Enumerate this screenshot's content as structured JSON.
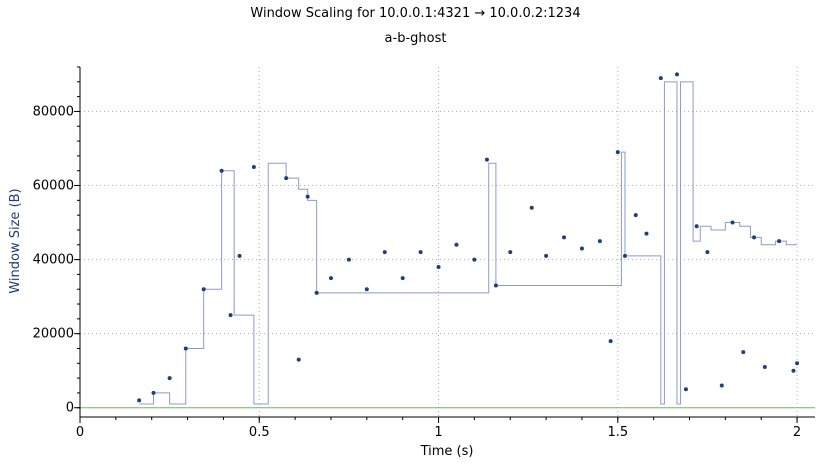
{
  "title": "Window Scaling for 10.0.0.1:4321 → 10.0.0.2:1234",
  "subtitle": "a-b-ghost",
  "colors": {
    "series": "#1f3f7a",
    "step_line": "#8a9ccc",
    "baseline": "#7cb36b",
    "grid": "#b0b0b0",
    "ylabel": "#1f3f7a"
  },
  "chart_data": {
    "type": "scatter",
    "title": "Window Scaling for 10.0.0.1:4321 → 10.0.0.2:1234",
    "subtitle": "a-b-ghost",
    "xlabel": "Time (s)",
    "ylabel": "Window Size (B)",
    "xlim": [
      0,
      2.05
    ],
    "ylim": [
      -2500,
      92000
    ],
    "x_ticks": [
      0,
      0.5,
      1,
      1.5,
      2
    ],
    "x_tick_labels": [
      "0",
      "0.5",
      "1",
      "1.5",
      "2"
    ],
    "y_ticks": [
      0,
      20000,
      40000,
      60000,
      80000
    ],
    "y_tick_labels": [
      "0",
      "20000",
      "40000",
      "60000",
      "80000"
    ],
    "grid": true,
    "series": [
      {
        "style": "points",
        "points": [
          [
            0.165,
            2000
          ],
          [
            0.205,
            4000
          ],
          [
            0.25,
            8000
          ],
          [
            0.295,
            16000
          ],
          [
            0.345,
            32000
          ],
          [
            0.395,
            64000
          ],
          [
            0.42,
            25000
          ],
          [
            0.445,
            41000
          ],
          [
            0.485,
            65000
          ],
          [
            0.575,
            62000
          ],
          [
            0.61,
            13000
          ],
          [
            0.635,
            57000
          ],
          [
            0.66,
            31000
          ],
          [
            0.7,
            35000
          ],
          [
            0.75,
            40000
          ],
          [
            0.8,
            32000
          ],
          [
            0.85,
            42000
          ],
          [
            0.9,
            35000
          ],
          [
            0.95,
            42000
          ],
          [
            1.0,
            38000
          ],
          [
            1.05,
            44000
          ],
          [
            1.1,
            40000
          ],
          [
            1.135,
            67000
          ],
          [
            1.16,
            33000
          ],
          [
            1.2,
            42000
          ],
          [
            1.26,
            54000
          ],
          [
            1.3,
            41000
          ],
          [
            1.35,
            46000
          ],
          [
            1.4,
            43000
          ],
          [
            1.45,
            45000
          ],
          [
            1.48,
            18000
          ],
          [
            1.5,
            69000
          ],
          [
            1.52,
            41000
          ],
          [
            1.55,
            52000
          ],
          [
            1.58,
            47000
          ],
          [
            1.62,
            89000
          ],
          [
            1.665,
            90000
          ],
          [
            1.69,
            5000
          ],
          [
            1.72,
            49000
          ],
          [
            1.75,
            42000
          ],
          [
            1.79,
            6000
          ],
          [
            1.82,
            50000
          ],
          [
            1.85,
            15000
          ],
          [
            1.88,
            46000
          ],
          [
            1.91,
            11000
          ],
          [
            1.95,
            45000
          ],
          [
            1.99,
            10000
          ],
          [
            2.0,
            12000
          ]
        ]
      },
      {
        "style": "step",
        "points": [
          [
            0.165,
            1000
          ],
          [
            0.205,
            1000
          ],
          [
            0.205,
            4000
          ],
          [
            0.25,
            4000
          ],
          [
            0.25,
            1000
          ],
          [
            0.295,
            1000
          ],
          [
            0.295,
            16000
          ],
          [
            0.345,
            16000
          ],
          [
            0.345,
            32000
          ],
          [
            0.395,
            32000
          ],
          [
            0.395,
            64000
          ],
          [
            0.43,
            64000
          ],
          [
            0.43,
            25000
          ],
          [
            0.485,
            25000
          ],
          [
            0.485,
            1000
          ],
          [
            0.525,
            1000
          ],
          [
            0.525,
            66000
          ],
          [
            0.575,
            66000
          ],
          [
            0.575,
            62000
          ],
          [
            0.61,
            62000
          ],
          [
            0.61,
            59000
          ],
          [
            0.635,
            59000
          ],
          [
            0.635,
            56000
          ],
          [
            0.66,
            56000
          ],
          [
            0.66,
            31000
          ],
          [
            1.14,
            31000
          ],
          [
            1.14,
            66000
          ],
          [
            1.16,
            66000
          ],
          [
            1.16,
            33000
          ],
          [
            1.51,
            33000
          ],
          [
            1.51,
            69000
          ],
          [
            1.52,
            69000
          ],
          [
            1.52,
            41000
          ],
          [
            1.62,
            41000
          ],
          [
            1.62,
            1000
          ],
          [
            1.63,
            1000
          ],
          [
            1.63,
            88000
          ],
          [
            1.665,
            88000
          ],
          [
            1.665,
            1000
          ],
          [
            1.675,
            1000
          ],
          [
            1.675,
            88000
          ],
          [
            1.71,
            88000
          ],
          [
            1.71,
            45000
          ],
          [
            1.73,
            45000
          ],
          [
            1.73,
            49000
          ],
          [
            1.76,
            49000
          ],
          [
            1.76,
            48000
          ],
          [
            1.8,
            48000
          ],
          [
            1.8,
            50000
          ],
          [
            1.84,
            50000
          ],
          [
            1.84,
            49000
          ],
          [
            1.87,
            49000
          ],
          [
            1.87,
            46000
          ],
          [
            1.9,
            46000
          ],
          [
            1.9,
            44000
          ],
          [
            1.94,
            44000
          ],
          [
            1.94,
            45000
          ],
          [
            1.97,
            45000
          ],
          [
            1.97,
            44000
          ],
          [
            2.0,
            44000
          ]
        ]
      },
      {
        "style": "baseline",
        "points": [
          [
            0,
            0
          ],
          [
            2.05,
            0
          ]
        ]
      }
    ]
  }
}
